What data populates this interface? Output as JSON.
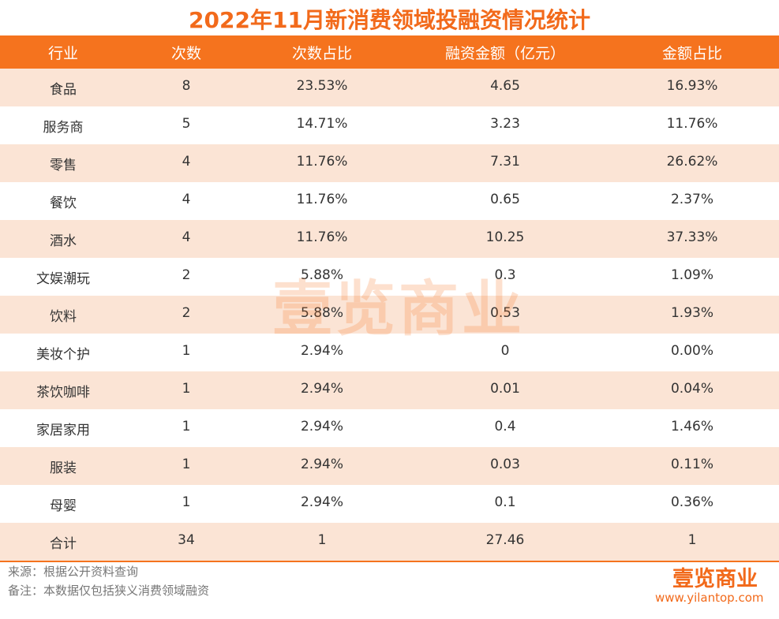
{
  "header": {
    "title": "2022年11月新消费领域投融资情况统计"
  },
  "table": {
    "columns": [
      "行业",
      "次数",
      "次数占比",
      "融资金额（亿元）",
      "金额占比"
    ],
    "rows": [
      [
        "食品",
        "8",
        "23.53%",
        "4.65",
        "16.93%"
      ],
      [
        "服务商",
        "5",
        "14.71%",
        "3.23",
        "11.76%"
      ],
      [
        "零售",
        "4",
        "11.76%",
        "7.31",
        "26.62%"
      ],
      [
        "餐饮",
        "4",
        "11.76%",
        "0.65",
        "2.37%"
      ],
      [
        "酒水",
        "4",
        "11.76%",
        "10.25",
        "37.33%"
      ],
      [
        "文娱潮玩",
        "2",
        "5.88%",
        "0.3",
        "1.09%"
      ],
      [
        "饮料",
        "2",
        "5.88%",
        "0.53",
        "1.93%"
      ],
      [
        "美妆个护",
        "1",
        "2.94%",
        "0",
        "0.00%"
      ],
      [
        "茶饮咖啡",
        "1",
        "2.94%",
        "0.01",
        "0.04%"
      ],
      [
        "家居家用",
        "1",
        "2.94%",
        "0.4",
        "1.46%"
      ],
      [
        "服装",
        "1",
        "2.94%",
        "0.03",
        "0.11%"
      ],
      [
        "母婴",
        "1",
        "2.94%",
        "0.1",
        "0.36%"
      ],
      [
        "合计",
        "34",
        "1",
        "27.46",
        "1"
      ]
    ]
  },
  "watermark": "壹览商业",
  "footer": {
    "source": "来源：根据公开资料查询",
    "note": "备注：本数据仅包括狭义消费领域融资",
    "logo": "壹览商业",
    "url": "www.yilantop.com"
  }
}
